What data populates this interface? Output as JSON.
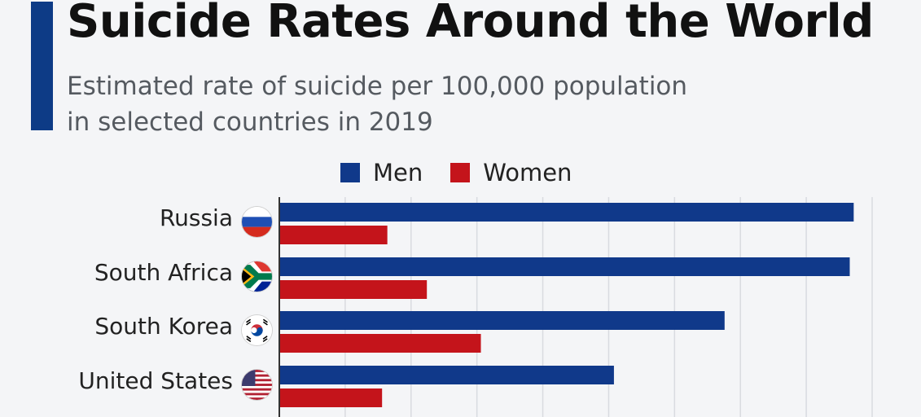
{
  "header": {
    "title": "Suicide Rates Around the World",
    "subtitle_line1": "Estimated rate of suicide per 100,000 population",
    "subtitle_line2": "in selected countries in 2019"
  },
  "colors": {
    "accent": "#0d3b86",
    "men": "#10398a",
    "women": "#c4141b",
    "grid": "#d9dbe0",
    "axis": "#333333"
  },
  "legend": [
    {
      "label": "Men",
      "color": "#10398a"
    },
    {
      "label": "Women",
      "color": "#c4141b"
    }
  ],
  "flags": [
    "russia-flag",
    "south-africa-flag",
    "south-korea-flag",
    "united-states-flag"
  ],
  "chart_data": {
    "type": "bar",
    "orientation": "horizontal",
    "title": "Suicide Rates Around the World",
    "subtitle": "Estimated rate of suicide per 100,000 population in selected countries in 2019",
    "categories": [
      "Russia",
      "South Africa",
      "South Korea",
      "United States"
    ],
    "series": [
      {
        "name": "Men",
        "values": [
          43.6,
          43.3,
          33.8,
          25.4
        ]
      },
      {
        "name": "Women",
        "values": [
          8.2,
          11.2,
          15.3,
          7.8
        ]
      }
    ],
    "xlim": [
      0,
      45
    ],
    "grid": true,
    "legend_position": "top"
  }
}
